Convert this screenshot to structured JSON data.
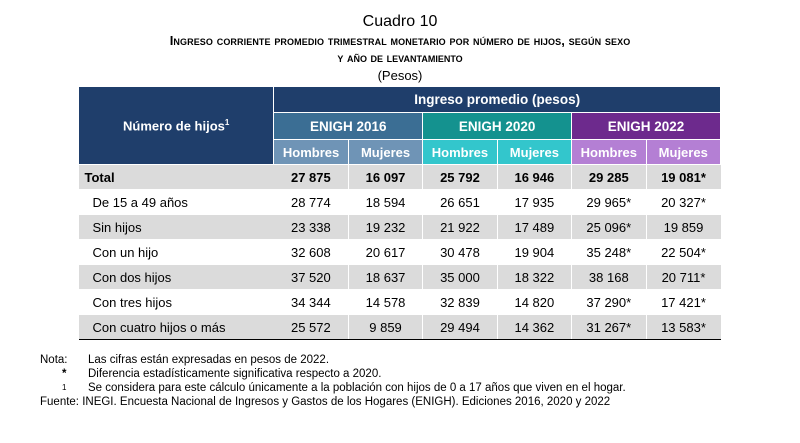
{
  "header": {
    "label": "Cuadro 10",
    "title_line1": "Ingreso corriente promedio trimestral monetario por número de hijos, según sexo",
    "title_line2": "y año de levantamiento",
    "unit": "(Pesos)"
  },
  "table": {
    "row_header": "Número de hijos",
    "row_header_sup": "1",
    "group_header": "Ingreso promedio (pesos)",
    "surveys": [
      "ENIGH 2016",
      "ENIGH 2020",
      "ENIGH 2022"
    ],
    "sexes": [
      "Hombres",
      "Mujeres"
    ],
    "rows": [
      {
        "label": "Total",
        "values": [
          "27 875",
          "16 097",
          "25 792",
          "16 946",
          "29 285",
          "19 081*"
        ]
      },
      {
        "label": "De 15 a 49 años",
        "values": [
          "28 774",
          "18 594",
          "26 651",
          "17 935",
          "29 965*",
          "20 327*"
        ]
      },
      {
        "label": "Sin hijos",
        "values": [
          "23 338",
          "19 232",
          "21 922",
          "17 489",
          "25 096*",
          "19 859"
        ]
      },
      {
        "label": "Con un hijo",
        "values": [
          "32 608",
          "20 617",
          "30 478",
          "19 904",
          "35 248*",
          "22 504*"
        ]
      },
      {
        "label": "Con dos hijos",
        "values": [
          "37 520",
          "18 637",
          "35 000",
          "18 322",
          "38 168",
          "20 711*"
        ]
      },
      {
        "label": "Con tres hijos",
        "values": [
          "34 344",
          "14 578",
          "32 839",
          "14 820",
          "37 290*",
          "17 421*"
        ]
      },
      {
        "label": "Con cuatro hijos o más",
        "values": [
          "25 572",
          "9 859",
          "29 494",
          "14 362",
          "31 267*",
          "13 583*"
        ]
      }
    ]
  },
  "notes": [
    {
      "key": "Nota:",
      "text": "Las cifras están expresadas en pesos de 2022."
    },
    {
      "key": "*",
      "text": "Diferencia estadísticamente significativa respecto a 2020."
    },
    {
      "key": "1",
      "text": "Se considera para este cálculo únicamente a la población con hijos de 0 a 17 años que viven en el hogar."
    }
  ],
  "source": "Fuente: INEGI. Encuesta Nacional de Ingresos y Gastos de los Hogares (ENIGH). Ediciones 2016, 2020 y 2022"
}
